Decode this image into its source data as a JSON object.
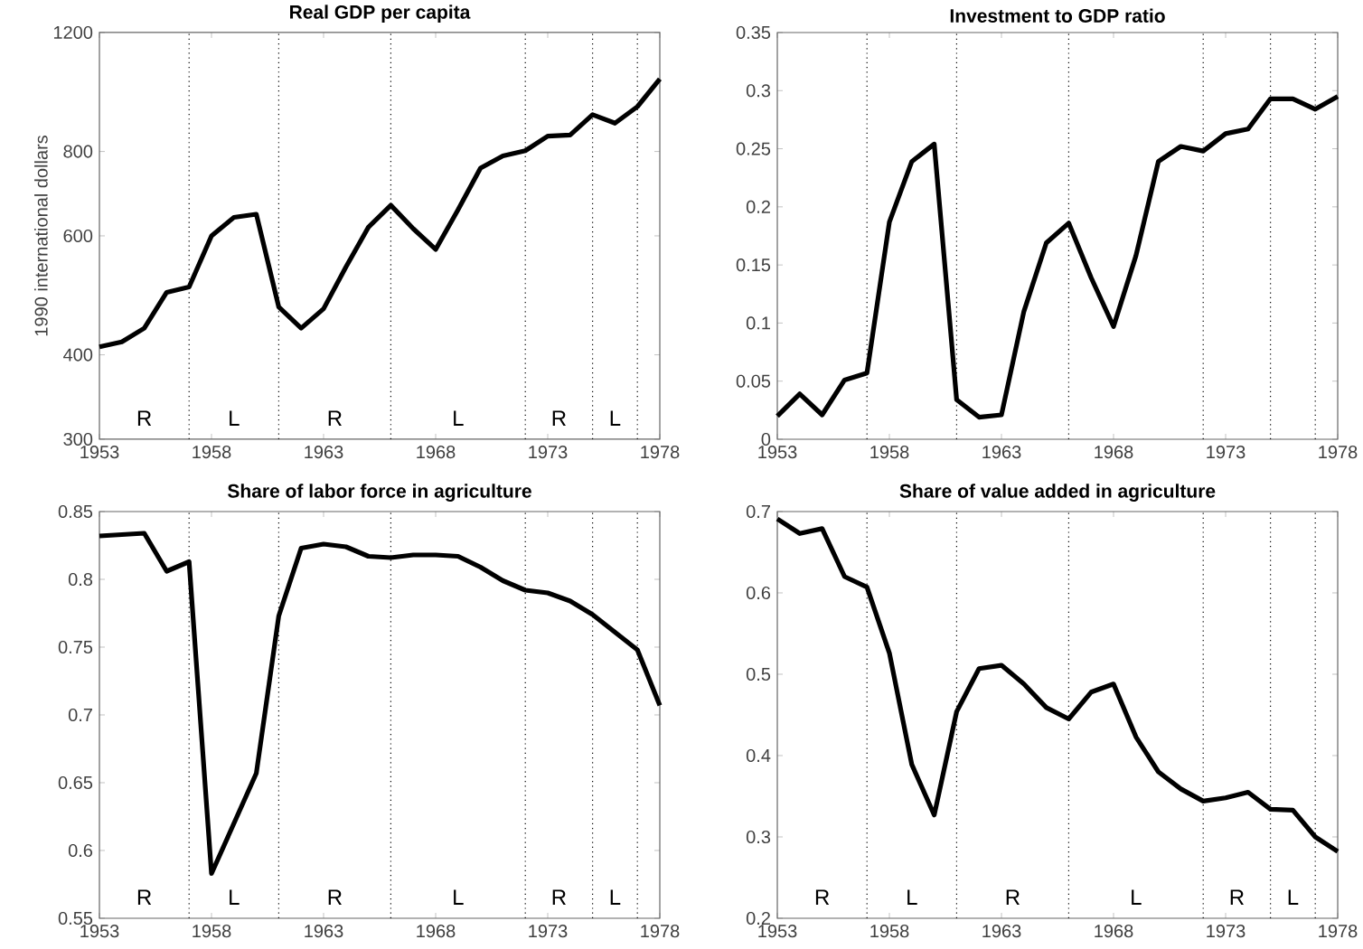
{
  "chart_data": [
    {
      "type": "line",
      "title": "Real GDP per capita",
      "ylabel": "1990 international dollars",
      "log": "y",
      "x": [
        1953,
        1954,
        1955,
        1956,
        1957,
        1958,
        1959,
        1960,
        1961,
        1962,
        1963,
        1964,
        1965,
        1966,
        1967,
        1968,
        1969,
        1970,
        1971,
        1972,
        1973,
        1974,
        1975,
        1976,
        1977,
        1978
      ],
      "series": [
        {
          "color": "#000000",
          "values": [
            411,
            418,
            438,
            495,
            504,
            600,
            639,
            646,
            471,
            438,
            468,
            540,
            618,
            666,
            615,
            573,
            656,
            756,
            788,
            802,
            843,
            846,
            907,
            881,
            932,
            1024
          ]
        }
      ],
      "xlim": [
        1953,
        1978
      ],
      "xticks": [
        1953,
        1958,
        1963,
        1968,
        1973,
        1978
      ],
      "ylim": [
        300,
        1200
      ],
      "yticks": [
        300,
        400,
        600,
        800,
        1200
      ],
      "ref_lines": [
        {
          "axis": "x",
          "value": 1957,
          "color": "#000000",
          "line_style": "dotted"
        },
        {
          "axis": "x",
          "value": 1961,
          "color": "#000000",
          "line_style": "dotted"
        },
        {
          "axis": "x",
          "value": 1966,
          "color": "#000000",
          "line_style": "dotted"
        },
        {
          "axis": "x",
          "value": 1972,
          "color": "#000000",
          "line_style": "dotted"
        },
        {
          "axis": "x",
          "value": 1975,
          "color": "#000000",
          "line_style": "dotted"
        },
        {
          "axis": "x",
          "value": 1977,
          "color": "#000000",
          "line_style": "dotted"
        }
      ],
      "annotations": [
        "R",
        "L",
        "R",
        "L",
        "R",
        "L"
      ]
    },
    {
      "type": "line",
      "title": "Investment to GDP ratio",
      "x": [
        1953,
        1954,
        1955,
        1956,
        1957,
        1958,
        1959,
        1960,
        1961,
        1962,
        1963,
        1964,
        1965,
        1966,
        1967,
        1968,
        1969,
        1970,
        1971,
        1972,
        1973,
        1974,
        1975,
        1976,
        1977,
        1978
      ],
      "series": [
        {
          "color": "#000000",
          "values": [
            0.02,
            0.039,
            0.021,
            0.051,
            0.057,
            0.187,
            0.239,
            0.254,
            0.034,
            0.019,
            0.021,
            0.11,
            0.169,
            0.186,
            0.139,
            0.097,
            0.158,
            0.239,
            0.252,
            0.248,
            0.263,
            0.267,
            0.293,
            0.293,
            0.284,
            0.295
          ]
        }
      ],
      "xlim": [
        1953,
        1978
      ],
      "xticks": [
        1953,
        1958,
        1963,
        1968,
        1973,
        1978
      ],
      "ylim": [
        0,
        0.35
      ],
      "yticks": [
        0,
        0.05,
        0.1,
        0.15,
        0.2,
        0.25,
        0.3,
        0.35
      ],
      "ref_lines": [
        {
          "axis": "x",
          "value": 1957,
          "color": "#000000",
          "line_style": "dotted"
        },
        {
          "axis": "x",
          "value": 1961,
          "color": "#000000",
          "line_style": "dotted"
        },
        {
          "axis": "x",
          "value": 1966,
          "color": "#000000",
          "line_style": "dotted"
        },
        {
          "axis": "x",
          "value": 1972,
          "color": "#000000",
          "line_style": "dotted"
        },
        {
          "axis": "x",
          "value": 1975,
          "color": "#000000",
          "line_style": "dotted"
        },
        {
          "axis": "x",
          "value": 1977,
          "color": "#000000",
          "line_style": "dotted"
        }
      ]
    },
    {
      "type": "line",
      "title": "Share of labor force in agriculture",
      "x": [
        1953,
        1954,
        1955,
        1956,
        1957,
        1958,
        1959,
        1960,
        1961,
        1962,
        1963,
        1964,
        1965,
        1966,
        1967,
        1968,
        1969,
        1970,
        1971,
        1972,
        1973,
        1974,
        1975,
        1976,
        1977,
        1978
      ],
      "series": [
        {
          "color": "#000000",
          "values": [
            0.832,
            0.833,
            0.834,
            0.806,
            0.813,
            0.583,
            0.62,
            0.657,
            0.773,
            0.823,
            0.826,
            0.824,
            0.817,
            0.816,
            0.818,
            0.818,
            0.817,
            0.809,
            0.799,
            0.792,
            0.79,
            0.784,
            0.774,
            0.761,
            0.748,
            0.707
          ]
        }
      ],
      "xlim": [
        1953,
        1978
      ],
      "xticks": [
        1953,
        1958,
        1963,
        1968,
        1973,
        1978
      ],
      "ylim": [
        0.55,
        0.85
      ],
      "yticks": [
        0.55,
        0.6,
        0.65,
        0.7,
        0.75,
        0.8,
        0.85
      ],
      "ref_lines": [
        {
          "axis": "x",
          "value": 1957,
          "color": "#000000",
          "line_style": "dotted"
        },
        {
          "axis": "x",
          "value": 1961,
          "color": "#000000",
          "line_style": "dotted"
        },
        {
          "axis": "x",
          "value": 1966,
          "color": "#000000",
          "line_style": "dotted"
        },
        {
          "axis": "x",
          "value": 1972,
          "color": "#000000",
          "line_style": "dotted"
        },
        {
          "axis": "x",
          "value": 1975,
          "color": "#000000",
          "line_style": "dotted"
        },
        {
          "axis": "x",
          "value": 1977,
          "color": "#000000",
          "line_style": "dotted"
        }
      ],
      "annotations": [
        "R",
        "L",
        "R",
        "L",
        "R",
        "L"
      ]
    },
    {
      "type": "line",
      "title": "Share of value added in agriculture",
      "x": [
        1953,
        1954,
        1955,
        1956,
        1957,
        1958,
        1959,
        1960,
        1961,
        1962,
        1963,
        1964,
        1965,
        1966,
        1967,
        1968,
        1969,
        1970,
        1971,
        1972,
        1973,
        1974,
        1975,
        1976,
        1977,
        1978
      ],
      "series": [
        {
          "color": "#000000",
          "values": [
            0.691,
            0.673,
            0.679,
            0.62,
            0.607,
            0.526,
            0.389,
            0.327,
            0.454,
            0.507,
            0.511,
            0.488,
            0.459,
            0.445,
            0.478,
            0.488,
            0.423,
            0.38,
            0.359,
            0.344,
            0.348,
            0.355,
            0.334,
            0.333,
            0.3,
            0.282
          ]
        }
      ],
      "xlim": [
        1953,
        1978
      ],
      "xticks": [
        1953,
        1958,
        1963,
        1968,
        1973,
        1978
      ],
      "ylim": [
        0.2,
        0.7
      ],
      "yticks": [
        0.2,
        0.3,
        0.4,
        0.5,
        0.6,
        0.7
      ],
      "ref_lines": [
        {
          "axis": "x",
          "value": 1957,
          "color": "#000000",
          "line_style": "dotted"
        },
        {
          "axis": "x",
          "value": 1961,
          "color": "#000000",
          "line_style": "dotted"
        },
        {
          "axis": "x",
          "value": 1966,
          "color": "#000000",
          "line_style": "dotted"
        },
        {
          "axis": "x",
          "value": 1972,
          "color": "#000000",
          "line_style": "dotted"
        },
        {
          "axis": "x",
          "value": 1975,
          "color": "#000000",
          "line_style": "dotted"
        },
        {
          "axis": "x",
          "value": 1977,
          "color": "#000000",
          "line_style": "dotted"
        }
      ],
      "annotations": [
        "R",
        "L",
        "R",
        "L",
        "R",
        "L"
      ]
    }
  ]
}
